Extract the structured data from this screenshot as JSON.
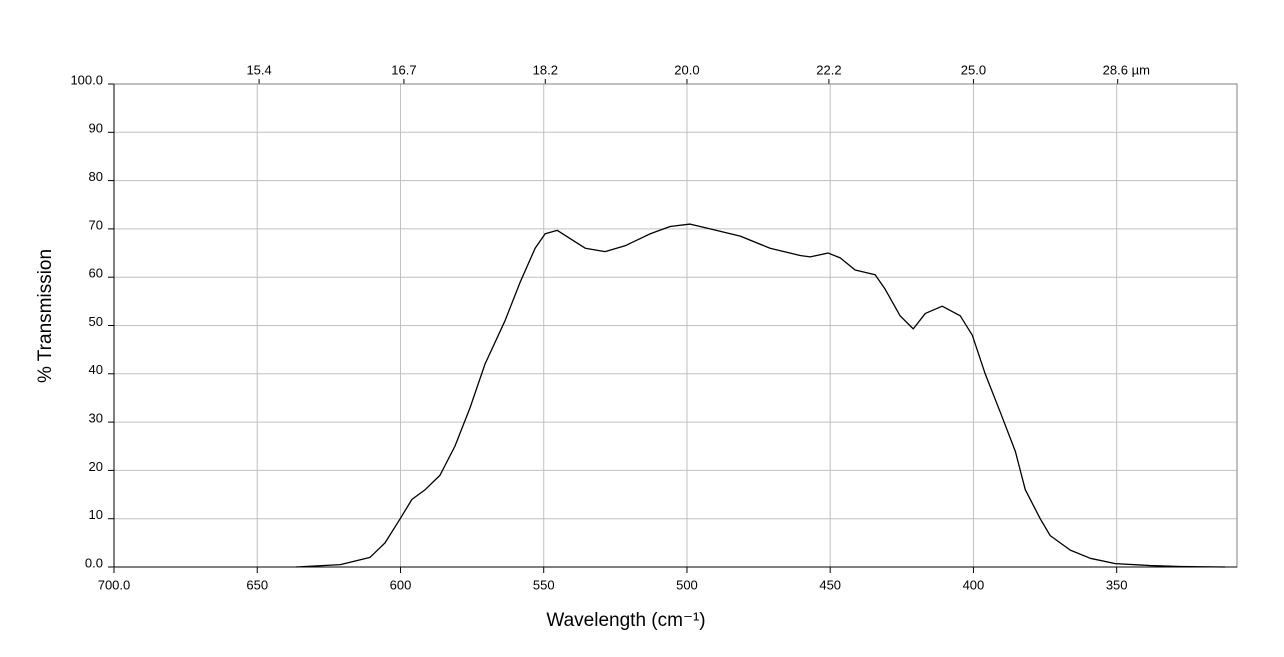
{
  "chart_data": {
    "type": "line",
    "x_label": "Wavelength (cm⁻¹)",
    "y_label": "% Transmission",
    "x": [
      636.4,
      621,
      610.6,
      605.4,
      600.1,
      596,
      591.4,
      586.2,
      581,
      575.7,
      570.5,
      563.5,
      558.2,
      553,
      549.5,
      545.3,
      540.8,
      535.5,
      528.6,
      521.6,
      512.8,
      505.9,
      498.9,
      491.9,
      481.4,
      471,
      460.5,
      457,
      450.7,
      446.5,
      441.3,
      434.3,
      430.8,
      425.6,
      421,
      416.8,
      410.9,
      404.6,
      400.4,
      395.9,
      390.6,
      385.4,
      381.9,
      376.7,
      373.2,
      366.2,
      359.2,
      350.5,
      338.3,
      327.8,
      312.1
    ],
    "values": [
      0,
      0.5,
      2,
      5,
      10,
      14,
      16,
      19,
      25,
      33,
      42,
      51,
      59,
      66,
      69,
      69.7,
      68,
      66,
      65.3,
      66.5,
      69,
      70.5,
      71,
      70,
      68.5,
      66,
      64.5,
      64.2,
      65,
      64,
      61.5,
      60.5,
      57.5,
      52,
      49.3,
      52.5,
      54,
      52,
      48,
      40,
      32,
      24,
      16,
      10,
      6.5,
      3.5,
      1.8,
      0.7,
      0.3,
      0.1,
      0
    ],
    "color": "#000000",
    "xlim": [
      700,
      308
    ],
    "ylim": [
      0,
      100
    ],
    "xticks": [
      {
        "value": 700,
        "label": "700.0"
      },
      650,
      600,
      550,
      500,
      450,
      400,
      350
    ],
    "yticks": [
      {
        "value": 0,
        "label": "0.0"
      },
      10,
      20,
      30,
      40,
      50,
      60,
      70,
      80,
      90,
      {
        "value": 100,
        "label": "100.0"
      }
    ],
    "x2ticks": [
      15.4,
      16.7,
      18.2,
      {
        "value": 20,
        "label": "20.0"
      },
      22.2,
      {
        "value": 25,
        "label": "25.0"
      },
      {
        "value": 28.6,
        "label": "28.6 µm"
      }
    ],
    "grid": true
  }
}
